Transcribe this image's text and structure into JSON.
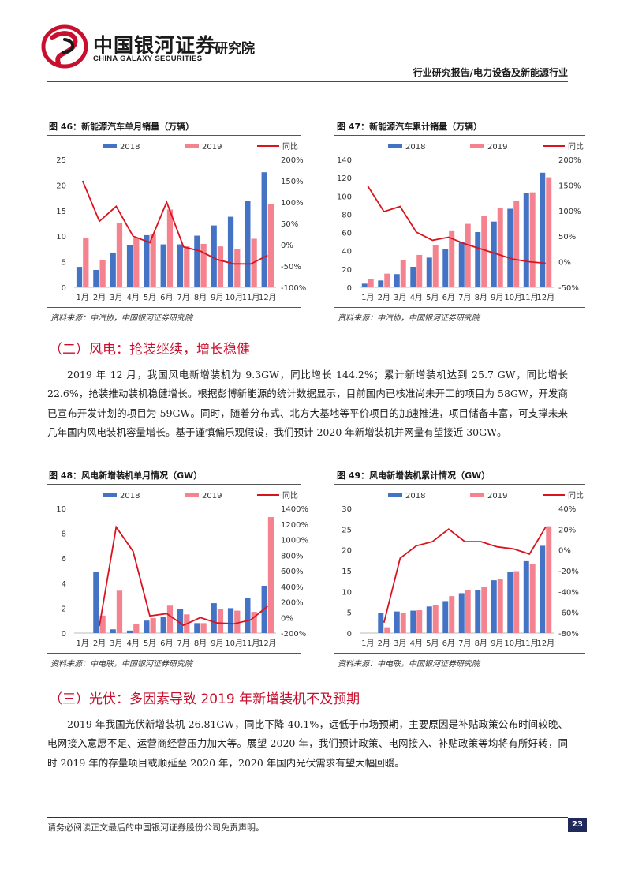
{
  "header": {
    "brand_cn": "中国银河证券",
    "brand_en": "CHINA GALAXY SECURITIES",
    "institute": "研究院",
    "report_type": "行业研究报告/电力设备及新能源行业"
  },
  "figures": {
    "fig46": {
      "title": "图 46：新能源汽车单月销量（万辆）",
      "source": "资料来源：中汽协，中国银河证券研究院"
    },
    "fig47": {
      "title": "图 47：新能源汽车累计销量（万辆）",
      "source": "资料来源：中汽协，中国银河证券研究院"
    },
    "fig48": {
      "title": "图 48：风电新增装机单月情况（GW）",
      "source": "资料来源：中电联，中国银河证券研究院"
    },
    "fig49": {
      "title": "图 49：风电新增装机累计情况（GW）",
      "source": "资料来源：中电联，中国银河证券研究院"
    }
  },
  "sections": {
    "wind_heading": "（二）风电：抢装继续，增长稳健",
    "wind_text": "2019 年 12 月，我国风电新增装机为 9.3GW，同比增长 144.2%；累计新增装机达到 25.7 GW，同比增长 22.6%，抢装推动装机稳健增长。根据彭博新能源的统计数据显示，目前国内已核准尚未开工的项目为 58GW，开发商已宣布开发计划的项目为 59GW。同时，随着分布式、北方大基地等平价项目的加速推进，项目储备丰富，可支撑未来几年国内风电装机容量增长。基于谨慎偏乐观假设，我们预计 2020 年新增装机并网量有望接近 30GW。",
    "pv_heading": "（三）光伏：多因素导致 2019 年新增装机不及预期",
    "pv_text": "2019 年我国光伏新增装机 26.81GW，同比下降 40.1%，远低于市场预期，主要原因是补贴政策公布时间较晚、电网接入意愿不足、运营商经营压力加大等。展望 2020 年，我们预计政策、电网接入、补贴政策等均将有所好转，同时 2019 年的存量项目或顺延至 2020 年，2020 年国内光伏需求有望大幅回暖。"
  },
  "footer": {
    "disclaimer": "请务必阅读正文最后的中国银河证券股份公司免责声明。",
    "page": "23"
  },
  "colors": {
    "s2018": "#4472c4",
    "s2019": "#f4838f",
    "yoy": "#d9141e",
    "brand_red": "#c8102e",
    "page_box": "#1f2a5a"
  },
  "chart_data": [
    {
      "id": "fig46",
      "type": "bar+line",
      "categories": [
        "1月",
        "2月",
        "3月",
        "4月",
        "5月",
        "6月",
        "7月",
        "8月",
        "9月",
        "10月",
        "11月",
        "12月"
      ],
      "series": [
        {
          "name": "2018",
          "values": [
            4.0,
            3.4,
            6.8,
            8.2,
            10.2,
            8.4,
            8.4,
            10.1,
            12.1,
            13.8,
            16.9,
            22.5
          ]
        },
        {
          "name": "2019",
          "values": [
            9.6,
            5.3,
            12.6,
            9.7,
            10.4,
            15.2,
            8.0,
            8.5,
            8.0,
            7.5,
            9.5,
            16.3
          ]
        },
        {
          "name": "同比",
          "axis": "right",
          "values": [
            150,
            55,
            90,
            20,
            5,
            100,
            -5,
            -15,
            -35,
            -45,
            -45,
            -25
          ]
        }
      ],
      "ylim": [
        0,
        25
      ],
      "yticks": [
        "0",
        "5",
        "10",
        "15",
        "20",
        "25"
      ],
      "y2lim": [
        -100,
        200
      ],
      "y2ticks": [
        "-100%",
        "-50%",
        "0%",
        "50%",
        "100%",
        "150%",
        "200%"
      ]
    },
    {
      "id": "fig47",
      "type": "bar+line",
      "categories": [
        "1月",
        "2月",
        "3月",
        "4月",
        "5月",
        "6月",
        "7月",
        "8月",
        "9月",
        "10月",
        "11月",
        "12月"
      ],
      "series": [
        {
          "name": "2018",
          "values": [
            4,
            7.5,
            14.5,
            22.5,
            32.5,
            41.5,
            49.5,
            60.5,
            72,
            86,
            103,
            125.5
          ]
        },
        {
          "name": "2019",
          "values": [
            9.5,
            15,
            30,
            35.5,
            46,
            61.5,
            69.5,
            78,
            87,
            94.5,
            104,
            120.5
          ]
        },
        {
          "name": "同比",
          "axis": "right",
          "values": [
            148,
            98,
            108,
            58,
            42,
            48,
            35,
            25,
            15,
            5,
            0,
            -3
          ]
        }
      ],
      "ylim": [
        0,
        140
      ],
      "yticks": [
        "0",
        "20",
        "40",
        "60",
        "80",
        "100",
        "120",
        "140"
      ],
      "y2lim": [
        -50,
        200
      ],
      "y2ticks": [
        "-50%",
        "0%",
        "50%",
        "100%",
        "150%",
        "200%"
      ]
    },
    {
      "id": "fig48",
      "type": "bar+line",
      "categories": [
        "1月",
        "2月",
        "3月",
        "4月",
        "5月",
        "6月",
        "7月",
        "8月",
        "9月",
        "10月",
        "11月",
        "12月"
      ],
      "series": [
        {
          "name": "2018",
          "values": [
            0,
            4.9,
            0.3,
            0.2,
            1.0,
            1.3,
            1.9,
            0.8,
            2.4,
            2.0,
            2.8,
            3.8
          ]
        },
        {
          "name": "2019",
          "values": [
            0,
            1.4,
            3.4,
            0.7,
            1.2,
            2.2,
            1.5,
            0.8,
            1.9,
            1.8,
            1.7,
            9.3
          ]
        },
        {
          "name": "同比",
          "axis": "right",
          "values": [
            null,
            -110,
            1160,
            850,
            20,
            50,
            -100,
            0,
            -70,
            -80,
            -30,
            144
          ]
        }
      ],
      "ylim": [
        0,
        10
      ],
      "yticks": [
        "0",
        "2",
        "4",
        "6",
        "8",
        "10"
      ],
      "y2lim": [
        -200,
        1400
      ],
      "y2ticks": [
        "-200%",
        "0%",
        "200%",
        "400%",
        "600%",
        "800%",
        "1000%",
        "1200%",
        "1400%"
      ]
    },
    {
      "id": "fig49",
      "type": "bar+line",
      "categories": [
        "1月",
        "2月",
        "3月",
        "4月",
        "5月",
        "6月",
        "7月",
        "8月",
        "9月",
        "10月",
        "11月",
        "12月"
      ],
      "series": [
        {
          "name": "2018",
          "values": [
            0,
            4.9,
            5.2,
            5.4,
            6.4,
            7.7,
            9.6,
            10.4,
            12.7,
            14.7,
            17.3,
            21.0
          ]
        },
        {
          "name": "2019",
          "values": [
            0,
            1.4,
            4.8,
            5.5,
            6.7,
            8.9,
            10.4,
            11.2,
            13.1,
            14.9,
            16.6,
            25.7
          ]
        },
        {
          "name": "同比",
          "axis": "right",
          "values": [
            null,
            -70,
            -8,
            4,
            8,
            20,
            8,
            8,
            3,
            1,
            -4,
            22
          ]
        }
      ],
      "ylim": [
        0,
        30
      ],
      "yticks": [
        "0",
        "5",
        "10",
        "15",
        "20",
        "25",
        "30"
      ],
      "y2lim": [
        -80,
        40
      ],
      "y2ticks": [
        "-80%",
        "-60%",
        "-40%",
        "-20%",
        "0%",
        "20%",
        "40%"
      ]
    }
  ]
}
